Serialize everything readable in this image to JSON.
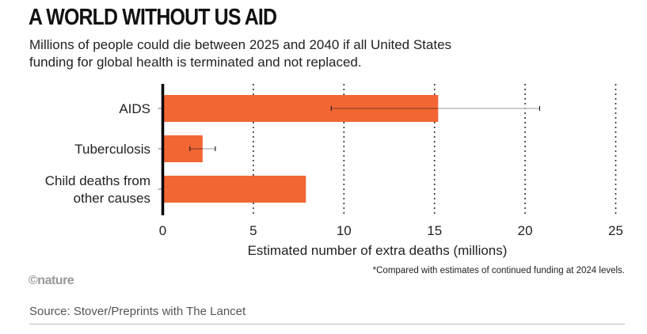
{
  "title": "A WORLD WITHOUT US AID",
  "subtitle": "Millions of people could die between 2025 and 2040 if all United States funding for global health is terminated and not replaced.",
  "footnote": "*Compared with estimates of continued funding at 2024 levels.",
  "logo": "©nature",
  "source": "Source: Stover/Preprints with The Lancet",
  "colors": {
    "bar": "#f26633",
    "error_lo": "#a8472a",
    "error_hi": "#bbbbbb"
  },
  "chart_data": {
    "type": "bar",
    "orientation": "horizontal",
    "categories": [
      "AIDS",
      "Tuberculosis",
      "Child deaths from other causes"
    ],
    "category_lines": [
      [
        "AIDS"
      ],
      [
        "Tuberculosis"
      ],
      [
        "Child deaths from",
        "other causes"
      ]
    ],
    "values": [
      15.2,
      2.2,
      7.9
    ],
    "error_low": [
      9.3,
      1.5,
      null
    ],
    "error_high": [
      20.8,
      2.9,
      null
    ],
    "xlabel": "Estimated number of extra deaths (millions)",
    "xlim": [
      0,
      25
    ],
    "xticks": [
      0,
      5,
      10,
      15,
      20,
      25
    ],
    "grid": "vertical dotted"
  }
}
